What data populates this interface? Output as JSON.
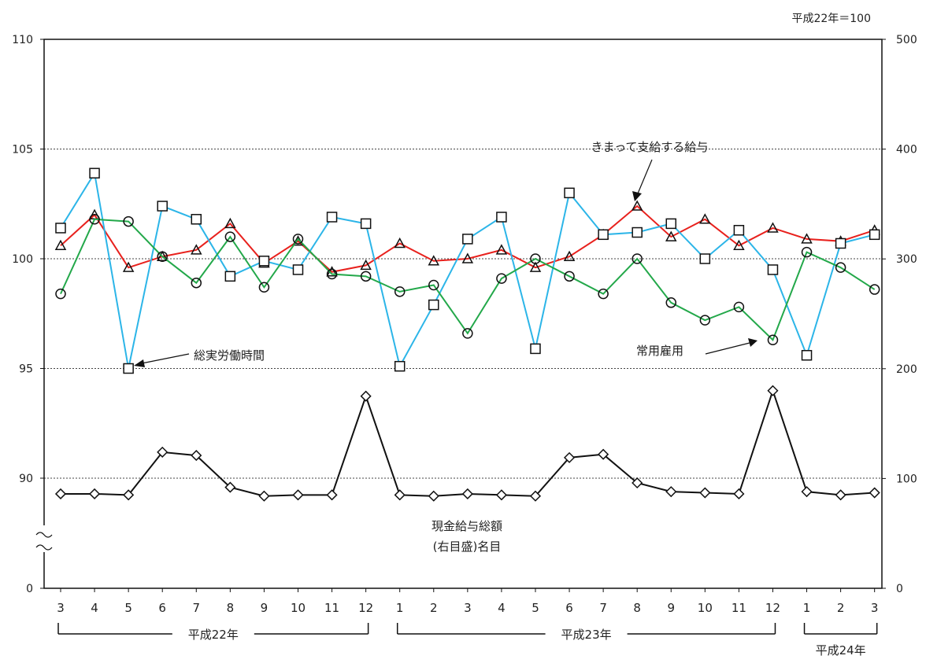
{
  "chart_data": {
    "type": "line",
    "base_note": "平成22年＝100",
    "categories": [
      "3",
      "4",
      "5",
      "6",
      "7",
      "8",
      "9",
      "10",
      "11",
      "12",
      "1",
      "2",
      "3",
      "4",
      "5",
      "6",
      "7",
      "8",
      "9",
      "10",
      "11",
      "12",
      "1",
      "2",
      "3"
    ],
    "year_groups": [
      {
        "label": "平成22年",
        "from": 0,
        "to": 9
      },
      {
        "label": "平成23年",
        "from": 10,
        "to": 21
      },
      {
        "label": "平成24年",
        "from": 22,
        "to": 24
      }
    ],
    "left_axis": {
      "ticks": [
        {
          "label": "110",
          "value": 110
        },
        {
          "label": "105",
          "value": 105
        },
        {
          "label": "100",
          "value": 100
        },
        {
          "label": "95",
          "value": 95
        },
        {
          "label": "90",
          "value": 90
        },
        {
          "label": "0",
          "value": 0
        }
      ]
    },
    "right_axis": {
      "ylim": [
        0,
        500
      ],
      "ticks": [
        {
          "label": "500",
          "value": 500
        },
        {
          "label": "400",
          "value": 400
        },
        {
          "label": "300",
          "value": 300
        },
        {
          "label": "200",
          "value": 200
        },
        {
          "label": "100",
          "value": 100
        },
        {
          "label": "0",
          "value": 0
        }
      ]
    },
    "series": [
      {
        "name": "きまって支給する給与",
        "axis": "left",
        "color": "#e8211d",
        "marker": "triangle",
        "values": [
          100.6,
          102.0,
          99.6,
          100.1,
          100.4,
          101.6,
          99.8,
          100.8,
          99.4,
          99.7,
          100.7,
          99.9,
          100.0,
          100.4,
          99.6,
          100.1,
          101.1,
          102.4,
          101.0,
          101.8,
          100.6,
          101.4,
          100.9,
          100.8,
          101.3
        ]
      },
      {
        "name": "総実労働時間",
        "axis": "left",
        "color": "#2cb5e8",
        "marker": "square",
        "values": [
          101.4,
          103.9,
          95.0,
          102.4,
          101.8,
          99.2,
          99.9,
          99.5,
          101.9,
          101.6,
          95.1,
          97.9,
          100.9,
          101.9,
          95.9,
          103.0,
          101.1,
          101.2,
          101.6,
          100.0,
          101.3,
          99.5,
          95.6,
          100.7,
          101.1
        ]
      },
      {
        "name": "常用雇用",
        "axis": "left",
        "color": "#23a84a",
        "marker": "circle",
        "values": [
          98.4,
          101.8,
          101.7,
          100.1,
          98.9,
          101.0,
          98.7,
          100.9,
          99.3,
          99.2,
          98.5,
          98.8,
          96.6,
          99.1,
          100.0,
          99.2,
          98.4,
          100.0,
          98.0,
          97.2,
          97.8,
          96.3,
          100.3,
          99.6,
          98.6
        ]
      },
      {
        "name": "現金給与総額",
        "axis": "right",
        "color": "#111111",
        "marker": "diamond",
        "values": [
          86,
          86,
          85,
          124,
          121,
          92,
          84,
          85,
          85,
          175,
          85,
          84,
          86,
          85,
          84,
          119,
          122,
          96,
          88,
          87,
          86,
          180,
          88,
          85,
          87
        ]
      }
    ],
    "annotations": [
      {
        "key": "wages",
        "text": "きまって支給する給与"
      },
      {
        "key": "hours",
        "text": "総実労働時間"
      },
      {
        "key": "employment",
        "text": "常用雇用"
      },
      {
        "key": "cash",
        "text": "現金給与総額",
        "text2": "(右目盛)名目"
      }
    ]
  }
}
